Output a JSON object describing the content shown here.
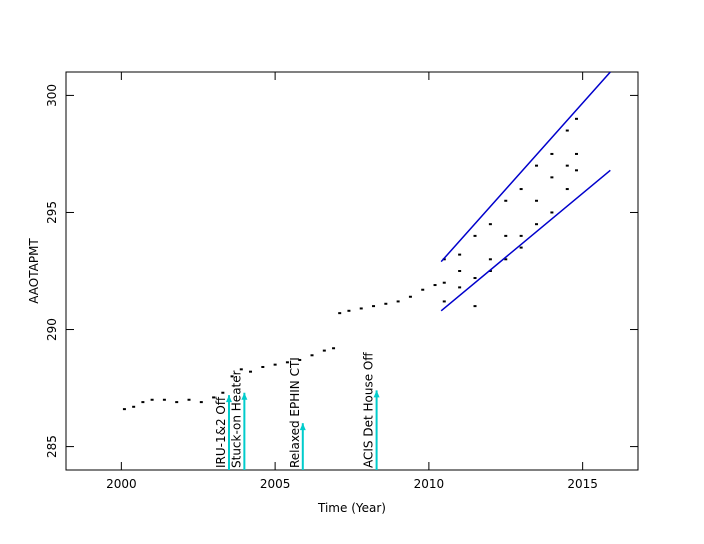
{
  "chart_data": {
    "type": "scatter",
    "xlabel": "Time (Year)",
    "ylabel": "AAOTAPMT",
    "xlim": [
      1998.2,
      2016.8
    ],
    "ylim": [
      284,
      301
    ],
    "xticks": [
      2000,
      2005,
      2010,
      2015
    ],
    "yticks": [
      285,
      290,
      295,
      300
    ],
    "series": [
      {
        "color": "#000000",
        "x": [
          2000.1,
          2000.4,
          2000.7,
          2001.0,
          2001.4,
          2001.8,
          2002.2,
          2002.6,
          2003.0,
          2003.3,
          2003.6,
          2003.9,
          2004.2,
          2004.6,
          2005.0,
          2005.4,
          2005.8,
          2006.2,
          2006.6,
          2006.9,
          2007.1,
          2007.4,
          2007.8,
          2008.2,
          2008.6,
          2009.0,
          2009.4,
          2009.8,
          2010.2,
          2010.5,
          2010.5,
          2010.5,
          2011.0,
          2011.0,
          2011.0,
          2011.5,
          2011.5,
          2011.5,
          2012.0,
          2012.0,
          2012.0,
          2012.5,
          2012.5,
          2012.5,
          2013.0,
          2013.0,
          2013.0,
          2013.5,
          2013.5,
          2013.5,
          2014.0,
          2014.0,
          2014.0,
          2014.5,
          2014.5,
          2014.5,
          2014.8,
          2014.8,
          2014.8
        ],
        "values": [
          286.6,
          286.7,
          286.9,
          287.0,
          287.0,
          286.9,
          287.0,
          286.9,
          287.1,
          287.3,
          288.0,
          288.3,
          288.2,
          288.4,
          288.5,
          288.6,
          288.7,
          288.9,
          289.1,
          289.2,
          290.7,
          290.8,
          290.9,
          291.0,
          291.1,
          291.2,
          291.4,
          291.7,
          291.9,
          292.0,
          293.0,
          291.2,
          291.8,
          293.2,
          292.5,
          292.2,
          294.0,
          291.0,
          292.5,
          294.5,
          293.0,
          293.0,
          295.5,
          294.0,
          294.0,
          296.0,
          293.5,
          294.5,
          297.0,
          295.5,
          295.0,
          297.5,
          296.5,
          296.0,
          298.5,
          297.0,
          297.5,
          299.0,
          296.8
        ]
      }
    ],
    "trend_lines": [
      {
        "color": "#0000cc",
        "x": [
          2010.4,
          2015.9
        ],
        "values": [
          292.9,
          301.0
        ]
      },
      {
        "color": "#0000cc",
        "x": [
          2010.4,
          2015.9
        ],
        "values": [
          290.8,
          296.8
        ]
      }
    ],
    "annotations": [
      {
        "text": "IRU-1&2 Off",
        "x": 2003.5,
        "y": 287.2,
        "color": "#00cccc"
      },
      {
        "text": "Stuck-on Heater",
        "x": 2004.0,
        "y": 287.3,
        "color": "#00cccc"
      },
      {
        "text": "Relaxed EPHIN CTI",
        "x": 2005.9,
        "y": 286.0,
        "color": "#00cccc"
      },
      {
        "text": "ACIS Det House Off",
        "x": 2008.3,
        "y": 287.4,
        "color": "#00cccc"
      }
    ]
  }
}
